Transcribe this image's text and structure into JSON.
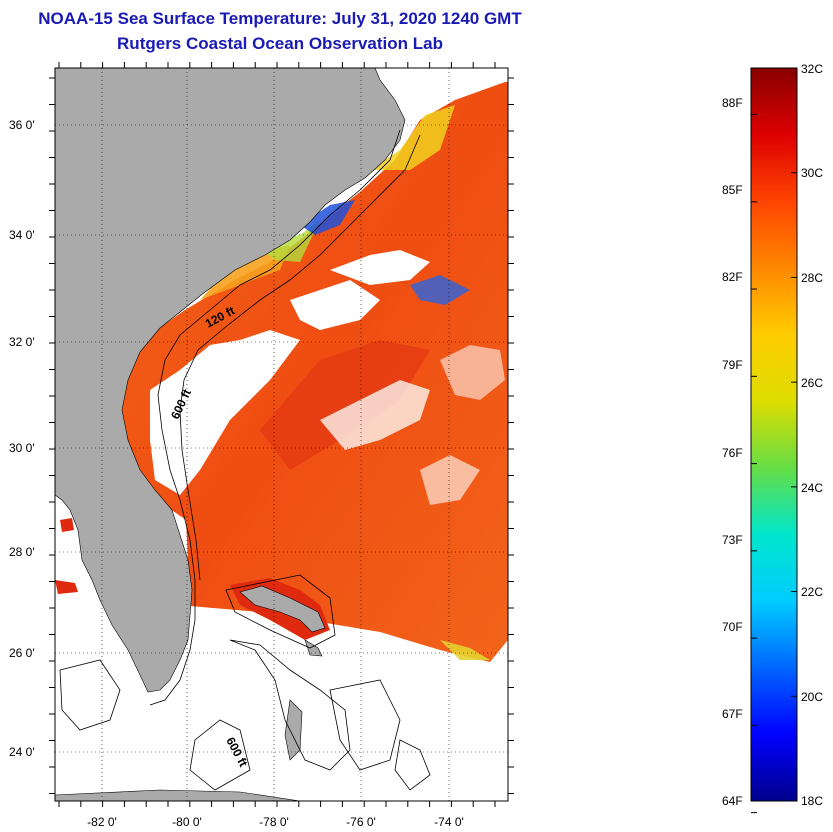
{
  "header": {
    "title": "NOAA-15 Sea Surface Temperature:  July 31, 2020 1240 GMT",
    "subtitle": "Rutgers Coastal Ocean Observation Lab"
  },
  "map": {
    "lat_labels": [
      "36 0'",
      "34 0'",
      "32 0'",
      "30 0'",
      "28 0'",
      "26 0'",
      "24 0'"
    ],
    "lon_labels": [
      "-82 0'",
      "-80 0'",
      "-78 0'",
      "-76 0'",
      "-74 0'"
    ],
    "contour_labels": [
      "120 ft",
      "600 ft",
      "600 ft"
    ],
    "colors": {
      "land": "#aaaaaa",
      "cloud": "#ffffff",
      "warm_sst": "#f25a14",
      "warmer_sst": "#e02a10"
    }
  },
  "colorbar": {
    "fahrenheit_labels": [
      "88F",
      "85F",
      "82F",
      "79F",
      "76F",
      "73F",
      "70F",
      "67F",
      "64F"
    ],
    "celsius_labels": [
      "32C",
      "30C",
      "28C",
      "26C",
      "24C",
      "22C",
      "20C",
      "18C"
    ],
    "min_c": 18,
    "max_c": 32,
    "gradient_colors": [
      "#00008c",
      "#0000ff",
      "#0066ff",
      "#00ccff",
      "#00e6cc",
      "#66dd44",
      "#dddd00",
      "#ffcc00",
      "#ff8800",
      "#ff4400",
      "#dd0000",
      "#880000"
    ]
  }
}
